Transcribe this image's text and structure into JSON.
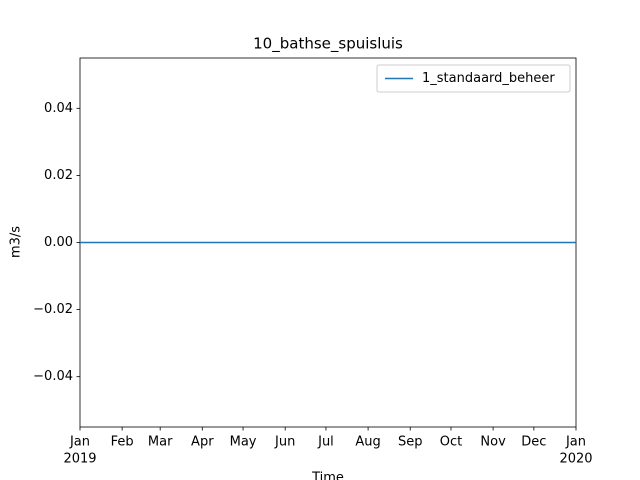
{
  "chart_data": {
    "type": "line",
    "title": "10_bathse_spuisluis",
    "x_label": "Time",
    "y_label": "m3/s",
    "x": [
      "2019-01",
      "2020-01"
    ],
    "series": [
      {
        "name": "1_standaard_beheer",
        "color": "#1f77b4",
        "values": [
          0,
          0
        ]
      }
    ],
    "xlim": [
      "2019-01",
      "2020-01"
    ],
    "xticks": [
      {
        "value": "2019-01",
        "label": "Jan"
      },
      {
        "value": "2019-02",
        "label": "Feb"
      },
      {
        "value": "2019-03",
        "label": "Mar"
      },
      {
        "value": "2019-04",
        "label": "Apr"
      },
      {
        "value": "2019-05",
        "label": "May"
      },
      {
        "value": "2019-06",
        "label": "Jun"
      },
      {
        "value": "2019-07",
        "label": "Jul"
      },
      {
        "value": "2019-08",
        "label": "Aug"
      },
      {
        "value": "2019-09",
        "label": "Sep"
      },
      {
        "value": "2019-10",
        "label": "Oct"
      },
      {
        "value": "2019-11",
        "label": "Nov"
      },
      {
        "value": "2019-12",
        "label": "Dec"
      },
      {
        "value": "2020-01",
        "label": "Jan"
      }
    ],
    "xtick_years": [
      {
        "value": "2019-01",
        "label": "2019"
      },
      {
        "value": "2020-01",
        "label": "2020"
      }
    ],
    "ylim": [
      -0.055,
      0.055
    ],
    "yticks": [
      {
        "value": -0.04,
        "label": "−0.04"
      },
      {
        "value": -0.02,
        "label": "−0.02"
      },
      {
        "value": 0,
        "label": "0.00"
      },
      0.02,
      0.04
    ],
    "legend": "upper right",
    "grid": false
  }
}
